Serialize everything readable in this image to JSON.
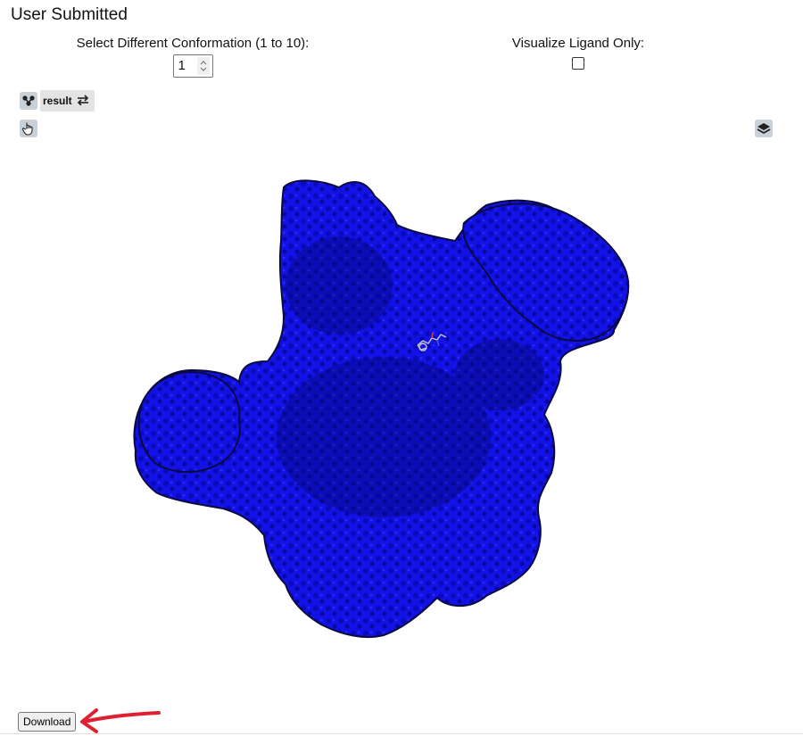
{
  "page": {
    "title": "User Submitted"
  },
  "controls": {
    "conformation_label": "Select Different Conformation (1 to 10):",
    "conformation_value": "1",
    "ligand_label": "Visualize Ligand Only:",
    "ligand_checked": false
  },
  "viewer": {
    "structure_name": "result",
    "structure_icon": "molecule-icon",
    "swap_icon": "swap-arrows-icon",
    "interact_icon": "pointer-hand-icon",
    "layers_icon": "layers-icon",
    "surface_color": "#1010e0",
    "outline_color": "#0a0a40"
  },
  "footer": {
    "download_label": "Download",
    "annotation_arrow_color": "#e02030"
  }
}
